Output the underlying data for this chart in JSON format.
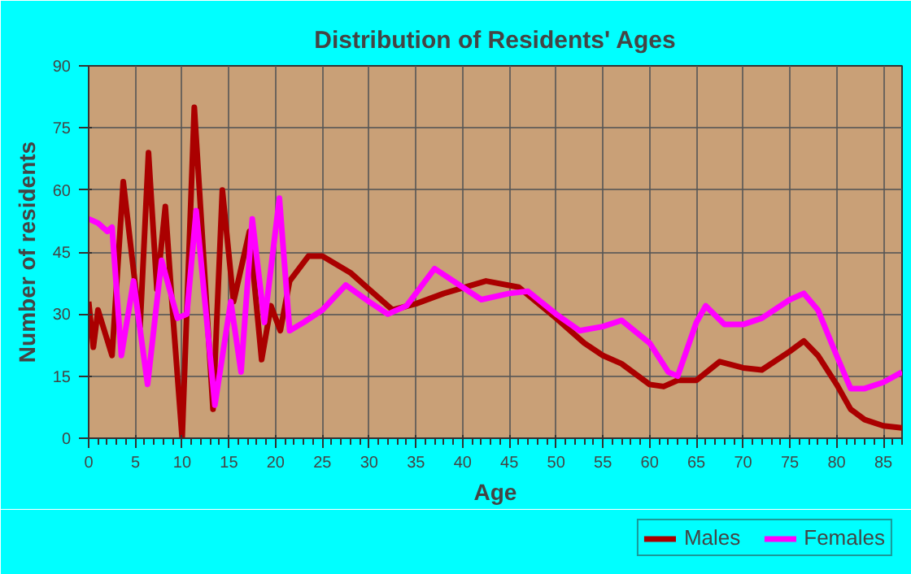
{
  "chart_data": {
    "type": "line",
    "title": "Distribution of Residents' Ages",
    "xlabel": "Age",
    "ylabel": "Number of residents",
    "xlim": [
      0,
      87
    ],
    "ylim": [
      0,
      90
    ],
    "xticks": [
      0,
      5,
      10,
      15,
      20,
      25,
      30,
      35,
      40,
      45,
      50,
      55,
      60,
      65,
      70,
      75,
      80,
      85
    ],
    "yticks": [
      0,
      15,
      30,
      45,
      60,
      75,
      90
    ],
    "grid": true,
    "legend": "bottom right",
    "line_style": "solid",
    "marker": "none",
    "series": [
      {
        "name": "Males",
        "color": "#aa0000",
        "x": [
          0,
          0.5,
          1,
          2.5,
          3.7,
          5.5,
          6.4,
          7.3,
          8.2,
          9,
          10,
          11.3,
          13.3,
          14.3,
          15.5,
          17.2,
          18.5,
          19.5,
          20.5,
          21.5,
          23.5,
          25,
          28,
          30,
          32.5,
          35,
          38,
          42.5,
          46,
          50,
          53,
          55,
          57,
          60,
          61.5,
          63,
          65,
          67.5,
          70,
          72,
          75,
          76.5,
          78,
          80,
          81.5,
          83,
          85,
          87
        ],
        "values": [
          33,
          22,
          31,
          20,
          62,
          27,
          69,
          36,
          56,
          30,
          0,
          80,
          7,
          60,
          33,
          50,
          19,
          32,
          26,
          38,
          44,
          44,
          40,
          36,
          31,
          32.5,
          35,
          38,
          36.5,
          29,
          23,
          20,
          18,
          13,
          12.5,
          14,
          14,
          18.5,
          17,
          16.5,
          21,
          23.5,
          20,
          13,
          7,
          4.5,
          3,
          2.5
        ]
      },
      {
        "name": "Females",
        "color": "#ff00ff",
        "x": [
          0,
          1,
          2,
          2.5,
          3.5,
          4.8,
          6.3,
          7.8,
          9.5,
          10.5,
          11.5,
          13.5,
          15.2,
          16.3,
          17.5,
          18.8,
          20.4,
          21.5,
          23,
          25,
          27.5,
          30,
          32,
          34,
          37,
          40,
          42,
          45,
          47,
          50,
          52.5,
          55,
          57,
          60,
          62,
          63,
          65,
          66,
          68,
          70,
          72,
          75,
          76.5,
          78,
          80,
          81.5,
          83,
          85,
          87
        ],
        "values": [
          53,
          52,
          50,
          51,
          20,
          38,
          13,
          43,
          29,
          30,
          55,
          8,
          33,
          16,
          53,
          28,
          58,
          26,
          28,
          31,
          37,
          33,
          30,
          32,
          41,
          36.5,
          33.5,
          35,
          35.5,
          30,
          26,
          27,
          28.5,
          23,
          16,
          15,
          28,
          32,
          27.5,
          27.5,
          29,
          33.5,
          35,
          31,
          20,
          12,
          12,
          13.5,
          16
        ]
      }
    ]
  }
}
